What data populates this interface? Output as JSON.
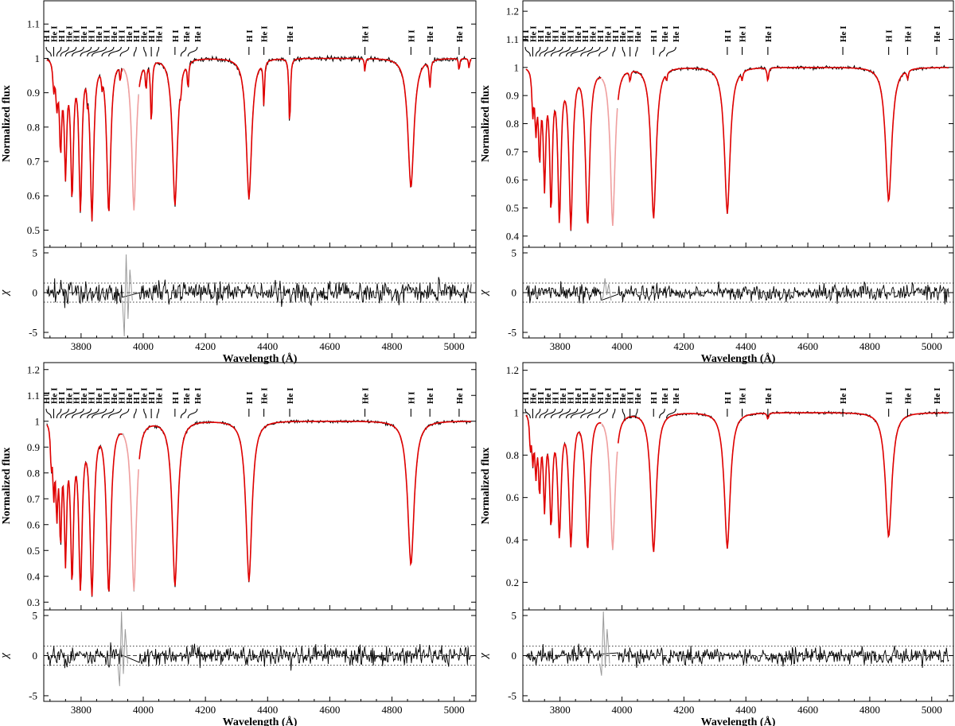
{
  "chart_data": [
    {
      "type": "line",
      "panel": "top-left",
      "xlabel": "Wavelength (Å)",
      "ylabel": "Normalized flux",
      "resid_label": "χ",
      "xlim": [
        3680,
        5070
      ],
      "xticks": [
        3800,
        4000,
        4200,
        4400,
        4600,
        4800,
        5000
      ],
      "ylim": [
        0.45,
        1.17
      ],
      "yticks": [
        0.5,
        0.6,
        0.7,
        0.8,
        0.9,
        1,
        1.1
      ],
      "resid_ylim": [
        -5.7,
        5.7
      ],
      "resid_yticks": [
        -5,
        0,
        5
      ],
      "series": [
        {
          "role": "observed",
          "color": "#000000"
        },
        {
          "role": "model",
          "color": "#e00000"
        }
      ],
      "lines": [
        {
          "w": 3712,
          "depth": 0.08,
          "width": 3.5
        },
        {
          "w": 3722,
          "depth": 0.12,
          "width": 4
        },
        {
          "w": 3734,
          "depth": 0.25,
          "width": 4.5
        },
        {
          "w": 3750,
          "depth": 0.32,
          "width": 5
        },
        {
          "w": 3771,
          "depth": 0.39,
          "width": 5.5
        },
        {
          "w": 3798,
          "depth": 0.43,
          "width": 6
        },
        {
          "w": 3835,
          "depth": 0.46,
          "width": 7
        },
        {
          "w": 3889,
          "depth": 0.45,
          "width": 8
        },
        {
          "w": 3970,
          "depth": 0.44,
          "width": 9
        },
        {
          "w": 4102,
          "depth": 0.43,
          "width": 10
        },
        {
          "w": 4340,
          "depth": 0.41,
          "width": 11
        },
        {
          "w": 4861,
          "depth": 0.38,
          "width": 12
        },
        {
          "w": 3820,
          "depth": 0.05,
          "width": 2
        },
        {
          "w": 3867,
          "depth": 0.04,
          "width": 2
        },
        {
          "w": 3926,
          "depth": 0.05,
          "width": 2
        },
        {
          "w": 4009,
          "depth": 0.08,
          "width": 2.5
        },
        {
          "w": 4026,
          "depth": 0.19,
          "width": 3
        },
        {
          "w": 4121,
          "depth": 0.04,
          "width": 2
        },
        {
          "w": 4144,
          "depth": 0.08,
          "width": 2.5
        },
        {
          "w": 4388,
          "depth": 0.13,
          "width": 2.5
        },
        {
          "w": 4471,
          "depth": 0.2,
          "width": 3
        },
        {
          "w": 4713,
          "depth": 0.04,
          "width": 2
        },
        {
          "w": 4922,
          "depth": 0.08,
          "width": 3
        },
        {
          "w": 5016,
          "depth": 0.04,
          "width": 2
        },
        {
          "w": 5048,
          "depth": 0.03,
          "width": 2
        }
      ],
      "sigma": 1.1,
      "resid_feature": [
        3945,
        4.8,
        -5.5
      ],
      "resid_label_lines": [
        1.2,
        0,
        -1.2
      ],
      "id_labels": [
        {
          "w": 3704,
          "label": "H I"
        },
        {
          "w": 3712,
          "label": "He I"
        },
        {
          "w": 3722,
          "label": "H I"
        },
        {
          "w": 3734,
          "label": "He I"
        },
        {
          "w": 3750,
          "label": "H I"
        },
        {
          "w": 3771,
          "label": "He I"
        },
        {
          "w": 3798,
          "label": "H I"
        },
        {
          "w": 3820,
          "label": "He I"
        },
        {
          "w": 3835,
          "label": "H I"
        },
        {
          "w": 3867,
          "label": "He I"
        },
        {
          "w": 3889,
          "label": "H I"
        },
        {
          "w": 3926,
          "label": "He I"
        },
        {
          "w": 3970,
          "label": "H I"
        },
        {
          "w": 4009,
          "label": "He I"
        },
        {
          "w": 4026,
          "label": "H I"
        },
        {
          "w": 4044,
          "label": "He I"
        },
        {
          "w": 4102,
          "label": "H I"
        },
        {
          "w": 4121,
          "label": "He I"
        },
        {
          "w": 4144,
          "label": "He I"
        },
        {
          "w": 4388,
          "label": "He I"
        },
        {
          "w": 4340,
          "label": "H I"
        },
        {
          "w": 4471,
          "label": "He I"
        },
        {
          "w": 4713,
          "label": "He I"
        },
        {
          "w": 4861,
          "label": "H I"
        },
        {
          "w": 4922,
          "label": "He I"
        },
        {
          "w": 5016,
          "label": "He I"
        }
      ]
    },
    {
      "type": "line",
      "panel": "top-right",
      "xlabel": "Wavelength (Å)",
      "ylabel": "Normalized flux",
      "resid_label": "χ",
      "xlim": [
        3680,
        5070
      ],
      "xticks": [
        3800,
        4000,
        4200,
        4400,
        4600,
        4800,
        5000
      ],
      "ylim": [
        0.36,
        1.24
      ],
      "yticks": [
        0.4,
        0.5,
        0.6,
        0.7,
        0.8,
        0.9,
        1,
        1.1,
        1.2
      ],
      "resid_ylim": [
        -5.7,
        5.7
      ],
      "resid_yticks": [
        -5,
        0,
        5
      ],
      "series": [
        {
          "role": "observed",
          "color": "#000000"
        },
        {
          "role": "model",
          "color": "#e00000"
        }
      ],
      "lines": [
        {
          "w": 3712,
          "depth": 0.15,
          "width": 3.5
        },
        {
          "w": 3722,
          "depth": 0.2,
          "width": 4
        },
        {
          "w": 3734,
          "depth": 0.3,
          "width": 4.5
        },
        {
          "w": 3750,
          "depth": 0.4,
          "width": 5
        },
        {
          "w": 3771,
          "depth": 0.48,
          "width": 5.5
        },
        {
          "w": 3798,
          "depth": 0.53,
          "width": 6.5
        },
        {
          "w": 3835,
          "depth": 0.56,
          "width": 7.5
        },
        {
          "w": 3889,
          "depth": 0.56,
          "width": 8.5
        },
        {
          "w": 3970,
          "depth": 0.56,
          "width": 9.5
        },
        {
          "w": 4102,
          "depth": 0.54,
          "width": 10.5
        },
        {
          "w": 4340,
          "depth": 0.52,
          "width": 11.5
        },
        {
          "w": 4861,
          "depth": 0.48,
          "width": 12.5
        },
        {
          "w": 4026,
          "depth": 0.04,
          "width": 2.5
        },
        {
          "w": 4144,
          "depth": 0.03,
          "width": 2
        },
        {
          "w": 4388,
          "depth": 0.03,
          "width": 2.5
        },
        {
          "w": 4471,
          "depth": 0.05,
          "width": 3
        },
        {
          "w": 4922,
          "depth": 0.03,
          "width": 3
        }
      ],
      "sigma": 0.9,
      "resid_feature": [
        3945,
        1.8,
        -0.5
      ],
      "resid_label_lines": [
        1.2,
        0,
        -1.2
      ],
      "id_labels": [
        {
          "w": 3704,
          "label": "H I"
        },
        {
          "w": 3712,
          "label": "He I"
        },
        {
          "w": 3722,
          "label": "H I"
        },
        {
          "w": 3734,
          "label": "He I"
        },
        {
          "w": 3750,
          "label": "H I"
        },
        {
          "w": 3771,
          "label": "He I"
        },
        {
          "w": 3798,
          "label": "H I"
        },
        {
          "w": 3820,
          "label": "He I"
        },
        {
          "w": 3835,
          "label": "H I"
        },
        {
          "w": 3867,
          "label": "He I"
        },
        {
          "w": 3889,
          "label": "H I"
        },
        {
          "w": 3926,
          "label": "He I"
        },
        {
          "w": 3970,
          "label": "H I"
        },
        {
          "w": 4009,
          "label": "He I"
        },
        {
          "w": 4026,
          "label": "H I"
        },
        {
          "w": 4044,
          "label": "He I"
        },
        {
          "w": 4102,
          "label": "H I"
        },
        {
          "w": 4121,
          "label": "He I"
        },
        {
          "w": 4144,
          "label": "He I"
        },
        {
          "w": 4388,
          "label": "He I"
        },
        {
          "w": 4340,
          "label": "H I"
        },
        {
          "w": 4471,
          "label": "He I"
        },
        {
          "w": 4713,
          "label": "He I"
        },
        {
          "w": 4861,
          "label": "H I"
        },
        {
          "w": 4922,
          "label": "He I"
        },
        {
          "w": 5016,
          "label": "He I"
        }
      ]
    },
    {
      "type": "line",
      "panel": "bottom-left",
      "xlabel": "Wavelength (Å)",
      "ylabel": "Normalized flux",
      "resid_label": "χ",
      "xlim": [
        3680,
        5070
      ],
      "xticks": [
        3800,
        4000,
        4200,
        4400,
        4600,
        4800,
        5000
      ],
      "ylim": [
        0.27,
        1.23
      ],
      "yticks": [
        0.3,
        0.4,
        0.5,
        0.6,
        0.7,
        0.8,
        0.9,
        1,
        1.1,
        1.2
      ],
      "resid_ylim": [
        -5.7,
        5.7
      ],
      "resid_yticks": [
        -5,
        0,
        5
      ],
      "series": [
        {
          "role": "observed",
          "color": "#000000"
        },
        {
          "role": "model",
          "color": "#e00000"
        }
      ],
      "lines": [
        {
          "w": 3704,
          "depth": 0.15,
          "width": 3
        },
        {
          "w": 3712,
          "depth": 0.25,
          "width": 3.5
        },
        {
          "w": 3722,
          "depth": 0.32,
          "width": 4
        },
        {
          "w": 3734,
          "depth": 0.42,
          "width": 4.5
        },
        {
          "w": 3750,
          "depth": 0.5,
          "width": 5
        },
        {
          "w": 3771,
          "depth": 0.58,
          "width": 6
        },
        {
          "w": 3798,
          "depth": 0.62,
          "width": 7
        },
        {
          "w": 3835,
          "depth": 0.65,
          "width": 8
        },
        {
          "w": 3889,
          "depth": 0.66,
          "width": 9
        },
        {
          "w": 3970,
          "depth": 0.65,
          "width": 10
        },
        {
          "w": 4102,
          "depth": 0.64,
          "width": 11
        },
        {
          "w": 4340,
          "depth": 0.62,
          "width": 12
        },
        {
          "w": 4861,
          "depth": 0.56,
          "width": 13
        }
      ],
      "sigma": 1.0,
      "resid_feature": [
        3930,
        5.5,
        -3.8
      ],
      "resid_label_lines": [
        1.2,
        0,
        -1.2
      ],
      "id_labels": [
        {
          "w": 3704,
          "label": "H I"
        },
        {
          "w": 3712,
          "label": "He I"
        },
        {
          "w": 3722,
          "label": "H I"
        },
        {
          "w": 3734,
          "label": "He I"
        },
        {
          "w": 3750,
          "label": "H I"
        },
        {
          "w": 3771,
          "label": "He I"
        },
        {
          "w": 3798,
          "label": "H I"
        },
        {
          "w": 3820,
          "label": "He I"
        },
        {
          "w": 3835,
          "label": "H I"
        },
        {
          "w": 3867,
          "label": "He I"
        },
        {
          "w": 3889,
          "label": "H I"
        },
        {
          "w": 3926,
          "label": "He I"
        },
        {
          "w": 3970,
          "label": "H I"
        },
        {
          "w": 4009,
          "label": "He I"
        },
        {
          "w": 4026,
          "label": "H I"
        },
        {
          "w": 4044,
          "label": "He I"
        },
        {
          "w": 4102,
          "label": "H I"
        },
        {
          "w": 4121,
          "label": "He I"
        },
        {
          "w": 4144,
          "label": "He I"
        },
        {
          "w": 4388,
          "label": "He I"
        },
        {
          "w": 4340,
          "label": "H I"
        },
        {
          "w": 4471,
          "label": "He I"
        },
        {
          "w": 4713,
          "label": "He I"
        },
        {
          "w": 4861,
          "label": "H I"
        },
        {
          "w": 4922,
          "label": "He I"
        },
        {
          "w": 5016,
          "label": "He I"
        }
      ]
    },
    {
      "type": "line",
      "panel": "bottom-right",
      "xlabel": "Wavelength (Å)",
      "ylabel": "Normalized flux",
      "resid_label": "χ",
      "xlim": [
        3680,
        5070
      ],
      "xticks": [
        3800,
        4000,
        4200,
        4400,
        4600,
        4800,
        5000
      ],
      "ylim": [
        0.07,
        1.24
      ],
      "yticks": [
        0.2,
        0.4,
        0.6,
        0.8,
        1,
        1.2
      ],
      "resid_ylim": [
        -5.7,
        5.7
      ],
      "resid_yticks": [
        -5,
        0,
        5
      ],
      "series": [
        {
          "role": "observed",
          "color": "#000000"
        },
        {
          "role": "model",
          "color": "#e00000"
        }
      ],
      "lines": [
        {
          "w": 3704,
          "depth": 0.15,
          "width": 3
        },
        {
          "w": 3712,
          "depth": 0.2,
          "width": 3.5
        },
        {
          "w": 3722,
          "depth": 0.26,
          "width": 4
        },
        {
          "w": 3734,
          "depth": 0.34,
          "width": 4.5
        },
        {
          "w": 3750,
          "depth": 0.42,
          "width": 5
        },
        {
          "w": 3771,
          "depth": 0.5,
          "width": 6
        },
        {
          "w": 3798,
          "depth": 0.56,
          "width": 7
        },
        {
          "w": 3835,
          "depth": 0.61,
          "width": 8
        },
        {
          "w": 3889,
          "depth": 0.64,
          "width": 9
        },
        {
          "w": 3970,
          "depth": 0.64,
          "width": 10
        },
        {
          "w": 4102,
          "depth": 0.66,
          "width": 11
        },
        {
          "w": 4340,
          "depth": 0.64,
          "width": 12
        },
        {
          "w": 4861,
          "depth": 0.59,
          "width": 13
        },
        {
          "w": 4471,
          "depth": 0.03,
          "width": 3
        }
      ],
      "sigma": 0.9,
      "resid_feature": [
        3940,
        5.5,
        -2.5
      ],
      "resid_label_lines": [
        1.2,
        0,
        -1.2
      ],
      "id_labels": [
        {
          "w": 3704,
          "label": "H I"
        },
        {
          "w": 3712,
          "label": "He I"
        },
        {
          "w": 3722,
          "label": "H I"
        },
        {
          "w": 3734,
          "label": "He I"
        },
        {
          "w": 3750,
          "label": "H I"
        },
        {
          "w": 3771,
          "label": "He I"
        },
        {
          "w": 3798,
          "label": "H I"
        },
        {
          "w": 3820,
          "label": "He I"
        },
        {
          "w": 3835,
          "label": "H I"
        },
        {
          "w": 3867,
          "label": "He I"
        },
        {
          "w": 3889,
          "label": "H I"
        },
        {
          "w": 3926,
          "label": "He I"
        },
        {
          "w": 3970,
          "label": "H I"
        },
        {
          "w": 4009,
          "label": "He I"
        },
        {
          "w": 4026,
          "label": "H I"
        },
        {
          "w": 4044,
          "label": "He I"
        },
        {
          "w": 4102,
          "label": "H I"
        },
        {
          "w": 4121,
          "label": "He I"
        },
        {
          "w": 4144,
          "label": "He I"
        },
        {
          "w": 4388,
          "label": "He I"
        },
        {
          "w": 4340,
          "label": "H I"
        },
        {
          "w": 4471,
          "label": "He I"
        },
        {
          "w": 4713,
          "label": "He I"
        },
        {
          "w": 4861,
          "label": "H I"
        },
        {
          "w": 4922,
          "label": "He I"
        },
        {
          "w": 5016,
          "label": "He I"
        }
      ]
    }
  ]
}
